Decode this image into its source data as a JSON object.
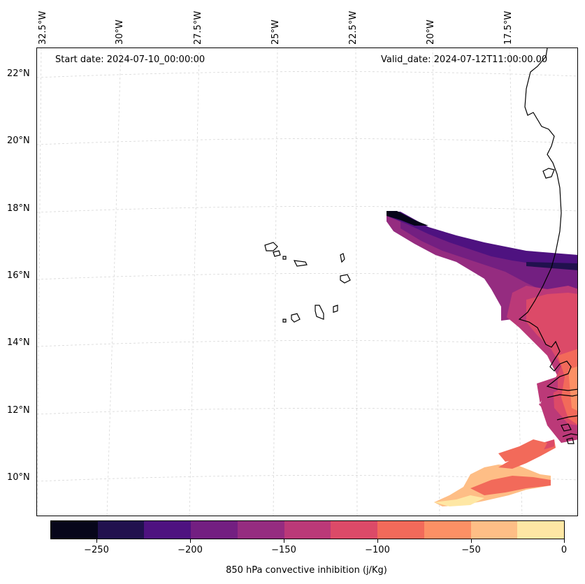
{
  "header": {
    "start_date": "Start date: 2024-07-10_00:00:00",
    "valid_date": "Valid_date: 2024-07-12T11:00:00.00"
  },
  "lon_labels": [
    "32.5°W",
    "30°W",
    "27.5°W",
    "25°W",
    "22.5°W",
    "20°W",
    "17.5°W"
  ],
  "lat_labels": [
    "22°N",
    "20°N",
    "18°N",
    "16°N",
    "14°N",
    "12°N",
    "10°N"
  ],
  "colorbar": {
    "title": "850 hPa convective inhibition (j/Kg)",
    "ticks": [
      "−250",
      "−200",
      "−150",
      "−100",
      "−50",
      "0"
    ],
    "levels": [
      -275,
      -250,
      -225,
      -200,
      -175,
      -150,
      -125,
      -100,
      -75,
      -50,
      -25,
      0
    ],
    "colors": [
      "#07061a",
      "#21114e",
      "#4e1280",
      "#731f81",
      "#952c80",
      "#bb3978",
      "#dc4a68",
      "#f26a5a",
      "#fc9065",
      "#febe86",
      "#fee7a4"
    ]
  },
  "field_colors": {
    "cin_minus_275": "#07061a",
    "cin_minus_250": "#21114e",
    "cin_minus_225": "#4e1280",
    "cin_minus_200": "#731f81",
    "cin_minus_175": "#952c80",
    "cin_minus_150": "#bb3978",
    "cin_minus_125": "#dc4a68",
    "cin_minus_100": "#f26a5a",
    "cin_minus_75": "#fc9065",
    "cin_minus_50": "#febe86",
    "cin_minus_25": "#fee7a4"
  }
}
